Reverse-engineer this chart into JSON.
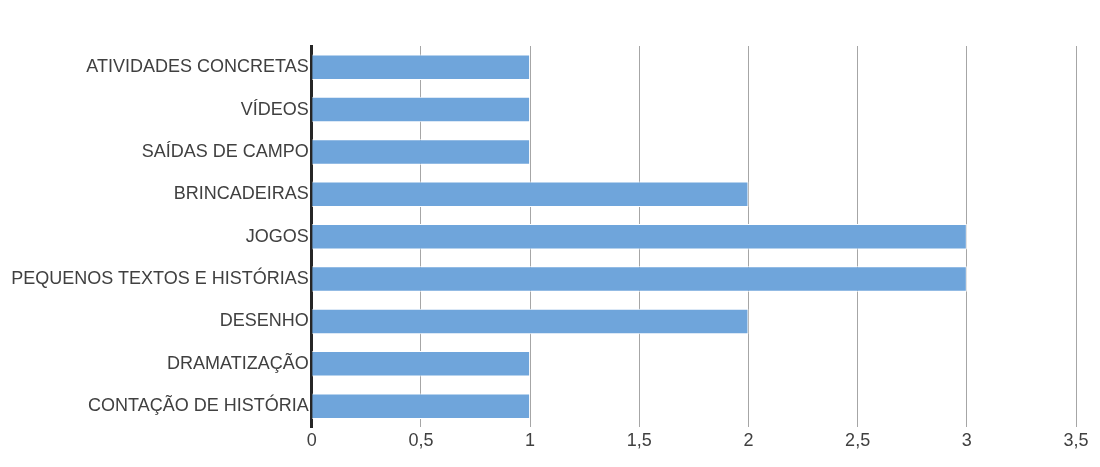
{
  "chart_data": {
    "type": "bar",
    "orientation": "horizontal",
    "categories": [
      "ATIVIDADES CONCRETAS",
      "VÍDEOS",
      "SAÍDAS DE CAMPO",
      "BRINCADEIRAS",
      "JOGOS",
      "PEQUENOS TEXTOS E HISTÓRIAS",
      "DESENHO",
      "DRAMATIZAÇÃO",
      "CONTAÇÃO DE HISTÓRIA"
    ],
    "values": [
      1,
      1,
      1,
      2,
      3,
      3,
      2,
      1,
      1
    ],
    "color": "#6fa5db",
    "xlim": [
      0,
      3.5
    ],
    "xticks": [
      0,
      {
        "value": 0.5,
        "label": "0,5"
      },
      1,
      {
        "value": 1.5,
        "label": "1,5"
      },
      2,
      {
        "value": 2.5,
        "label": "2,5"
      },
      3,
      {
        "value": 3.5,
        "label": "3,5"
      }
    ],
    "grid": "x"
  }
}
